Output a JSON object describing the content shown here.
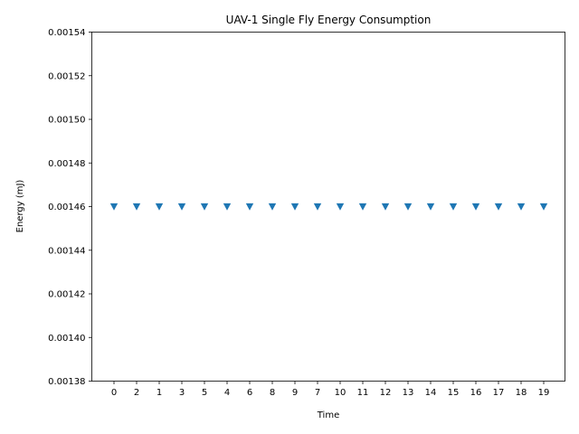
{
  "chart_data": {
    "type": "scatter",
    "title": "UAV-1 Single Fly Energy Consumption",
    "xlabel": "Time",
    "ylabel": "Energy (mJ)",
    "categories": [
      "0",
      "2",
      "1",
      "3",
      "5",
      "4",
      "6",
      "8",
      "9",
      "7",
      "10",
      "11",
      "12",
      "13",
      "14",
      "15",
      "16",
      "17",
      "18",
      "19"
    ],
    "values": [
      0.00146,
      0.00146,
      0.00146,
      0.00146,
      0.00146,
      0.00146,
      0.00146,
      0.00146,
      0.00146,
      0.00146,
      0.00146,
      0.00146,
      0.00146,
      0.00146,
      0.00146,
      0.00146,
      0.00146,
      0.00146,
      0.00146,
      0.00146
    ],
    "ylim": [
      0.00138,
      0.00154
    ],
    "yticks": [
      0.00138,
      0.0014,
      0.00142,
      0.00144,
      0.00146,
      0.00148,
      0.0015,
      0.00152,
      0.00154
    ],
    "ytick_labels": [
      "0.00138",
      "0.00140",
      "0.00142",
      "0.00144",
      "0.00146",
      "0.00148",
      "0.00150",
      "0.00152",
      "0.00154"
    ],
    "marker": "triangle-down",
    "color": "#1f77b4",
    "grid": false,
    "legend": "none"
  }
}
